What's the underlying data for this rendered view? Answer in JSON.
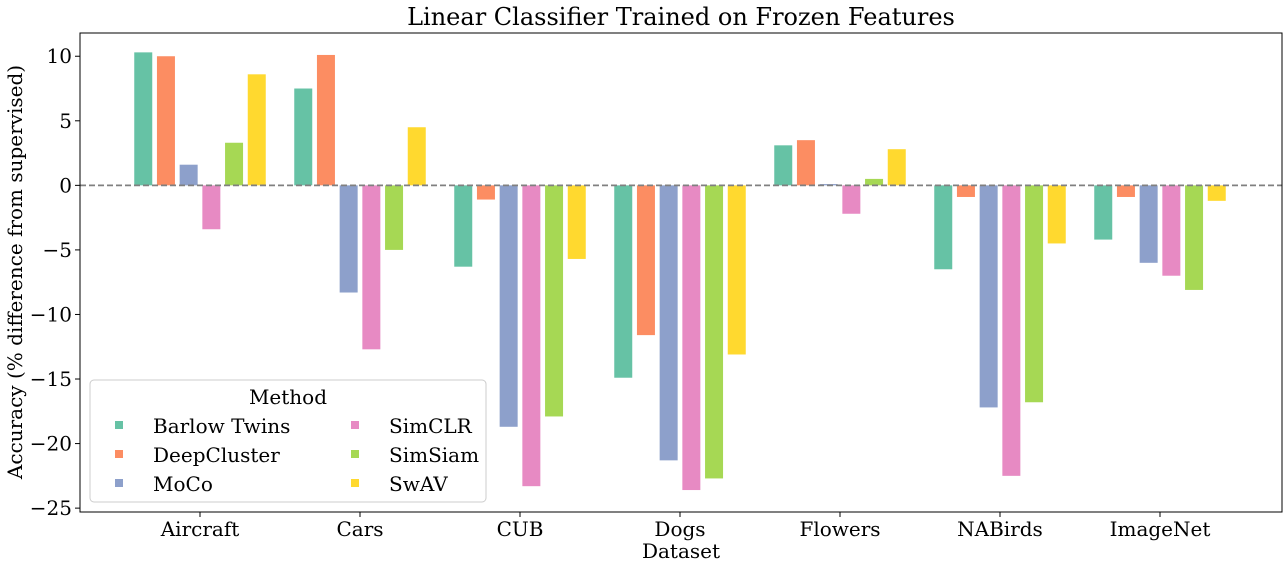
{
  "chart_data": {
    "type": "bar",
    "title": "Linear Classifier Trained on Frozen Features",
    "xlabel": "Dataset",
    "ylabel": "Accuracy (% difference from supervised)",
    "categories": [
      "Aircraft",
      "Cars",
      "CUB",
      "Dogs",
      "Flowers",
      "NABirds",
      "ImageNet"
    ],
    "ylim": [
      -25.3,
      11.8
    ],
    "yticks": [
      10,
      5,
      0,
      -5,
      -10,
      -15,
      -20,
      -25
    ],
    "reference_line": 0,
    "grid": false,
    "legend": {
      "title": "Method",
      "placement": "lower-left",
      "columns": 2
    },
    "series": [
      {
        "name": "Barlow Twins",
        "color": "#66c2a5",
        "values": [
          10.3,
          7.5,
          -6.3,
          -14.9,
          3.1,
          -6.5,
          -4.2
        ]
      },
      {
        "name": "DeepCluster",
        "color": "#fc8d62",
        "values": [
          10.0,
          10.1,
          -1.1,
          -11.6,
          3.5,
          -0.9,
          -0.9
        ]
      },
      {
        "name": "MoCo",
        "color": "#8da0cb",
        "values": [
          1.6,
          -8.3,
          -18.7,
          -21.3,
          0.1,
          -17.2,
          -6.0
        ]
      },
      {
        "name": "SimCLR",
        "color": "#e78ac3",
        "values": [
          -3.4,
          -12.7,
          -23.3,
          -23.6,
          -2.2,
          -22.5,
          -7.0
        ]
      },
      {
        "name": "SimSiam",
        "color": "#a6d854",
        "values": [
          3.3,
          -5.0,
          -17.9,
          -22.7,
          0.5,
          -16.8,
          -8.1
        ]
      },
      {
        "name": "SwAV",
        "color": "#ffd92f",
        "values": [
          8.6,
          4.5,
          -5.7,
          -13.1,
          2.8,
          -4.5,
          -1.2
        ]
      }
    ]
  }
}
